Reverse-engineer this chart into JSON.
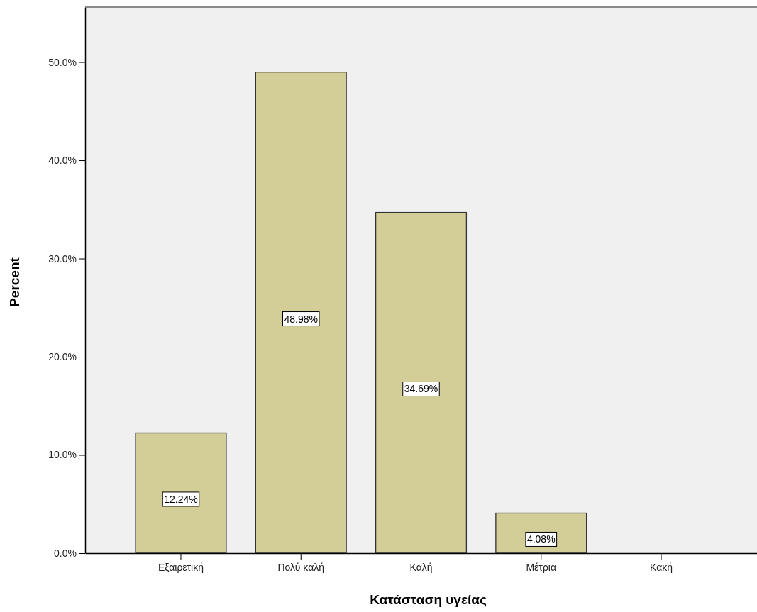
{
  "chart_data": {
    "type": "bar",
    "xlabel": "Κατάσταση υγείας",
    "ylabel": "Percent",
    "categories": [
      "Εξαιρετική",
      "Πολύ καλή",
      "Καλή",
      "Μέτρια",
      "Κακή"
    ],
    "values": [
      12.24,
      48.98,
      34.69,
      4.08,
      0
    ],
    "value_labels": [
      "12.24%",
      "48.98%",
      "34.69%",
      "4.08%",
      null
    ],
    "color": "#d3ce97",
    "ylim": [
      0,
      55.6
    ],
    "yticks": [
      {
        "value": 0,
        "label": "0.0%"
      },
      {
        "value": 10,
        "label": "10.0%"
      },
      {
        "value": 20,
        "label": "20.0%"
      },
      {
        "value": 30,
        "label": "30.0%"
      },
      {
        "value": 40,
        "label": "40.0%"
      },
      {
        "value": 50,
        "label": "50.0%"
      }
    ],
    "grid": false
  }
}
